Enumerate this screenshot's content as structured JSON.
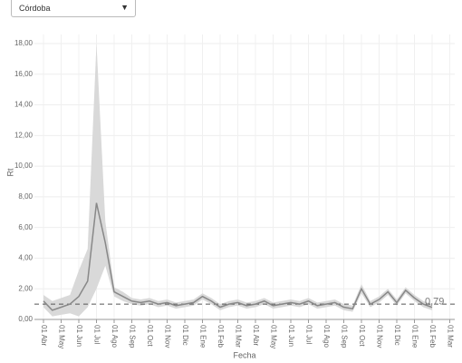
{
  "dropdown": {
    "selected": "Córdoba"
  },
  "chart_data": {
    "type": "line",
    "y_label": "Rt",
    "x_label": "Fecha",
    "categories": [
      "01 Abr",
      null,
      "01 May",
      null,
      "01 Jun",
      null,
      "01 Jul",
      null,
      "01 Ago",
      null,
      "01 Sep",
      null,
      "01 Oct",
      null,
      "01 Nov",
      null,
      "01 Dic",
      null,
      "01 Ene",
      null,
      "01 Feb",
      null,
      "01 Mar",
      null,
      "01 Abr",
      null,
      "01 May",
      null,
      "01 Jun",
      null,
      "01 Jul",
      null,
      "01 Ago",
      null,
      "01 Sep",
      null,
      "01 Oct",
      null,
      "01 Nov",
      null,
      "01 Dic",
      null,
      "01 Ene",
      null,
      "01 Feb",
      null,
      "01 Mar",
      null
    ],
    "series": [
      {
        "color": "#888888",
        "values": [
          1.2,
          0.6,
          0.8,
          1.0,
          1.5,
          2.5,
          7.6,
          5.0,
          1.8,
          1.5,
          1.2,
          1.1,
          1.2,
          1.0,
          1.1,
          0.9,
          1.0,
          1.1,
          1.5,
          1.2,
          0.8,
          1.0,
          1.1,
          0.9,
          1.0,
          1.2,
          0.9,
          1.0,
          1.1,
          1.0,
          1.2,
          0.9,
          1.0,
          1.1,
          0.8,
          0.7,
          2.0,
          1.0,
          1.3,
          1.8,
          1.1,
          1.9,
          1.4,
          1.0,
          0.79,
          null,
          null,
          null
        ]
      }
    ],
    "band": {
      "color": "#d9d9d9",
      "upper": [
        1.6,
        1.2,
        1.4,
        1.6,
        3.2,
        4.6,
        18,
        6.4,
        2.1,
        1.8,
        1.4,
        1.3,
        1.4,
        1.2,
        1.3,
        1.1,
        1.2,
        1.3,
        1.7,
        1.4,
        1.0,
        1.2,
        1.3,
        1.1,
        1.2,
        1.4,
        1.1,
        1.2,
        1.3,
        1.2,
        1.4,
        1.1,
        1.2,
        1.3,
        1.0,
        0.9,
        2.3,
        1.2,
        1.5,
        2.0,
        1.3,
        2.1,
        1.6,
        1.2,
        1.0,
        null,
        null,
        null
      ],
      "lower": [
        0.8,
        0.2,
        0.3,
        0.4,
        0.2,
        0.8,
        2.0,
        3.5,
        1.5,
        1.2,
        1.0,
        0.9,
        1.0,
        0.8,
        0.9,
        0.7,
        0.8,
        0.9,
        1.3,
        1.0,
        0.6,
        0.8,
        0.9,
        0.7,
        0.8,
        1.0,
        0.7,
        0.8,
        0.9,
        0.8,
        1.0,
        0.7,
        0.8,
        0.9,
        0.6,
        0.5,
        1.7,
        0.8,
        1.1,
        1.6,
        0.9,
        1.7,
        1.2,
        0.8,
        0.6,
        null,
        null,
        null
      ]
    },
    "reference_line": 1,
    "annotation": "0,79",
    "ylim": [
      0,
      18
    ],
    "yticks": [
      {
        "value": 0,
        "label": "0,00"
      },
      {
        "value": 2,
        "label": "2,00"
      },
      {
        "value": 4,
        "label": "4,00"
      },
      {
        "value": 6,
        "label": "6,00"
      },
      {
        "value": 8,
        "label": "8,00"
      },
      {
        "value": 10,
        "label": "10,00"
      },
      {
        "value": 12,
        "label": "12,00"
      },
      {
        "value": 14,
        "label": "14,00"
      },
      {
        "value": 16,
        "label": "16,00"
      },
      {
        "value": 18,
        "label": "18,00"
      }
    ],
    "grid": true
  }
}
